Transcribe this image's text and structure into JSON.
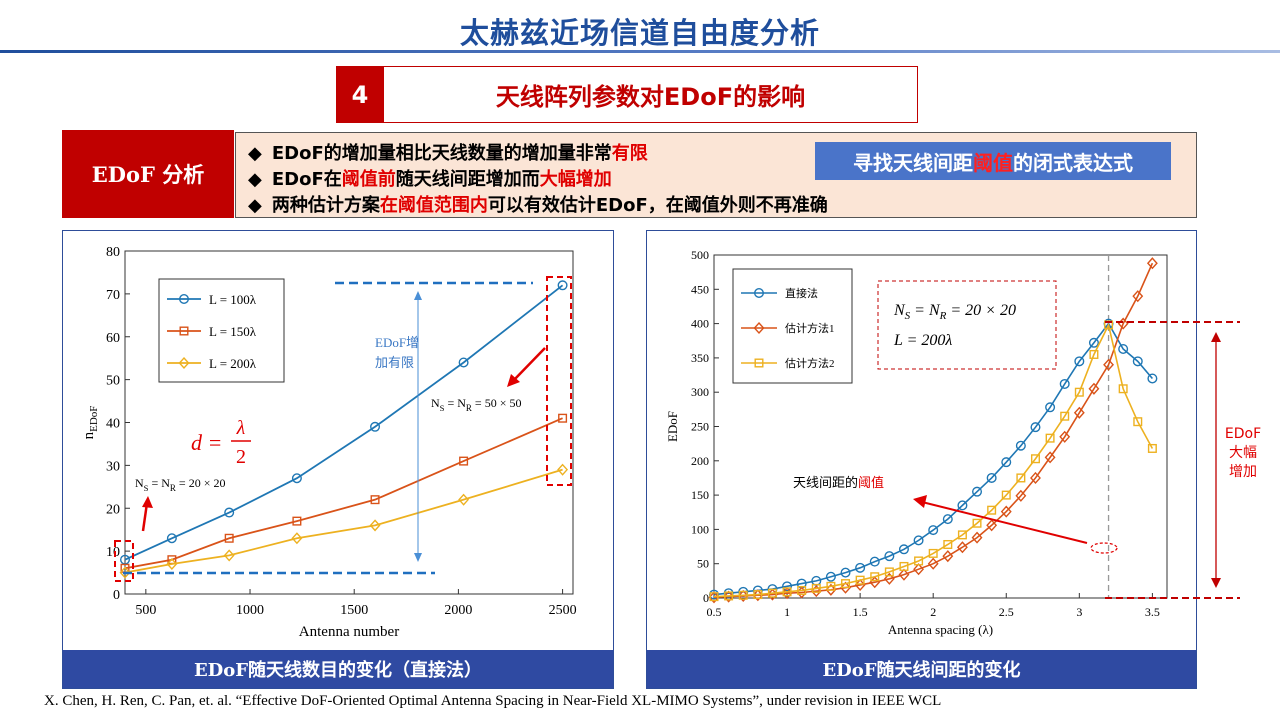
{
  "page_title": "太赫兹近场信道自由度分析",
  "section": {
    "number": "4",
    "title": "天线阵列参数对EDoF的影响"
  },
  "analysis_label": "EDoF 分析",
  "bullets": [
    {
      "marker": "◆",
      "parts": [
        {
          "t": "EDoF的增加量相比天线数量的增加量非常",
          "red": false
        },
        {
          "t": "有限",
          "red": true
        }
      ]
    },
    {
      "marker": "◆",
      "parts": [
        {
          "t": "EDoF在",
          "red": false
        },
        {
          "t": "阈值前",
          "red": true
        },
        {
          "t": "随天线间距增加而",
          "red": false
        },
        {
          "t": "大幅增加",
          "red": true
        }
      ]
    },
    {
      "marker": "◆",
      "parts": [
        {
          "t": "两种估计方案",
          "red": false
        },
        {
          "t": "在阈值范围内",
          "red": true
        },
        {
          "t": "可以有效估计EDoF，在阈值外则不再准确",
          "red": false
        }
      ]
    }
  ],
  "callout": {
    "before": "寻找天线间距",
    "highlight": "阈值",
    "after": "的闭式表达式"
  },
  "left_caption": "EDoF随天线数目的变化（直接法）",
  "right_caption": "EDoF随天线间距的变化",
  "left_annotations": {
    "increase_note_line1": "EDoF增",
    "increase_note_line2": "加有限",
    "formula_d": "d =",
    "formula_num": "λ",
    "formula_den": "2",
    "ns_small": "N_S = N_R = 20 × 20",
    "ns_large": "N_S = N_R = 50 × 50"
  },
  "right_annotations": {
    "params_line1": "N_S = N_R = 20 × 20",
    "params_line2": "L = 200λ",
    "threshold_before": "天线间距的",
    "threshold_highlight": "阈值",
    "increase_label": [
      "EDoF",
      "大幅",
      "增加"
    ]
  },
  "reference": "X. Chen, H. Ren, C. Pan, et. al. “Effective DoF-Oriented Optimal Antenna Spacing in Near-Field XL-MIMO Systems”, under revision in IEEE WCL",
  "chart_data": [
    {
      "type": "line",
      "xlabel": "Antenna number",
      "ylabel": "n_EDoF",
      "xlim": [
        400,
        2550
      ],
      "ylim": [
        0,
        80
      ],
      "xticks": [
        500,
        1000,
        1500,
        2000,
        2500
      ],
      "yticks": [
        0,
        10,
        20,
        30,
        40,
        50,
        60,
        70,
        80
      ],
      "x": [
        400,
        625,
        900,
        1225,
        1600,
        2025,
        2500
      ],
      "legend_position": "top-left",
      "series": [
        {
          "name": "L = 100λ",
          "color": "#1f77b4",
          "marker": "circle",
          "values": [
            8,
            13,
            19,
            27,
            39,
            54,
            72
          ]
        },
        {
          "name": "L = 150λ",
          "color": "#d95319",
          "marker": "square",
          "values": [
            6,
            8,
            13,
            17,
            22,
            31,
            41
          ]
        },
        {
          "name": "L = 200λ",
          "color": "#edb120",
          "marker": "diamond",
          "values": [
            5,
            7,
            9,
            13,
            16,
            22,
            29
          ]
        }
      ]
    },
    {
      "type": "line",
      "xlabel": "Antenna spacing (λ)",
      "ylabel": "EDoF",
      "xlim": [
        0.5,
        3.6
      ],
      "ylim": [
        0,
        500
      ],
      "xticks": [
        0.5,
        1,
        1.5,
        2,
        2.5,
        3,
        3.5
      ],
      "yticks": [
        0,
        50,
        100,
        150,
        200,
        250,
        300,
        350,
        400,
        450,
        500
      ],
      "threshold_x": 3.2,
      "legend_position": "top-left",
      "series": [
        {
          "name": "直接法",
          "color": "#1f77b4",
          "marker": "circle",
          "x": [
            0.5,
            0.6,
            0.7,
            0.8,
            0.9,
            1.0,
            1.1,
            1.2,
            1.3,
            1.4,
            1.5,
            1.6,
            1.7,
            1.8,
            1.9,
            2.0,
            2.1,
            2.2,
            2.3,
            2.4,
            2.5,
            2.6,
            2.7,
            2.8,
            2.9,
            3.0,
            3.1,
            3.2,
            3.3,
            3.4,
            3.5
          ],
          "values": [
            5,
            7,
            9,
            11,
            13,
            17,
            21,
            25,
            31,
            37,
            44,
            53,
            61,
            71,
            84,
            99,
            115,
            135,
            155,
            175,
            198,
            222,
            249,
            278,
            312,
            345,
            372,
            400,
            363,
            345,
            320
          ]
        },
        {
          "name": "估计方法1",
          "color": "#d95319",
          "marker": "diamond",
          "x": [
            0.5,
            0.6,
            0.7,
            0.8,
            0.9,
            1.0,
            1.1,
            1.2,
            1.3,
            1.4,
            1.5,
            1.6,
            1.7,
            1.8,
            1.9,
            2.0,
            2.1,
            2.2,
            2.3,
            2.4,
            2.5,
            2.6,
            2.7,
            2.8,
            2.9,
            3.0,
            3.1,
            3.2,
            3.3,
            3.4,
            3.5
          ],
          "values": [
            1,
            2,
            3,
            4,
            5,
            7,
            8,
            10,
            12,
            15,
            19,
            23,
            28,
            34,
            42,
            50,
            61,
            74,
            88,
            106,
            126,
            149,
            175,
            205,
            235,
            270,
            305,
            340,
            400,
            440,
            488
          ]
        },
        {
          "name": "估计方法2",
          "color": "#edb120",
          "marker": "square",
          "x": [
            0.5,
            0.6,
            0.7,
            0.8,
            0.9,
            1.0,
            1.1,
            1.2,
            1.3,
            1.4,
            1.5,
            1.6,
            1.7,
            1.8,
            1.9,
            2.0,
            2.1,
            2.2,
            2.3,
            2.4,
            2.5,
            2.6,
            2.7,
            2.8,
            2.9,
            3.0,
            3.1,
            3.2,
            3.3,
            3.4,
            3.5
          ],
          "values": [
            2,
            3,
            4,
            5,
            7,
            9,
            11,
            14,
            17,
            21,
            26,
            31,
            38,
            46,
            54,
            65,
            78,
            92,
            109,
            128,
            150,
            175,
            203,
            233,
            265,
            300,
            355,
            398,
            305,
            257,
            218
          ]
        }
      ]
    }
  ]
}
